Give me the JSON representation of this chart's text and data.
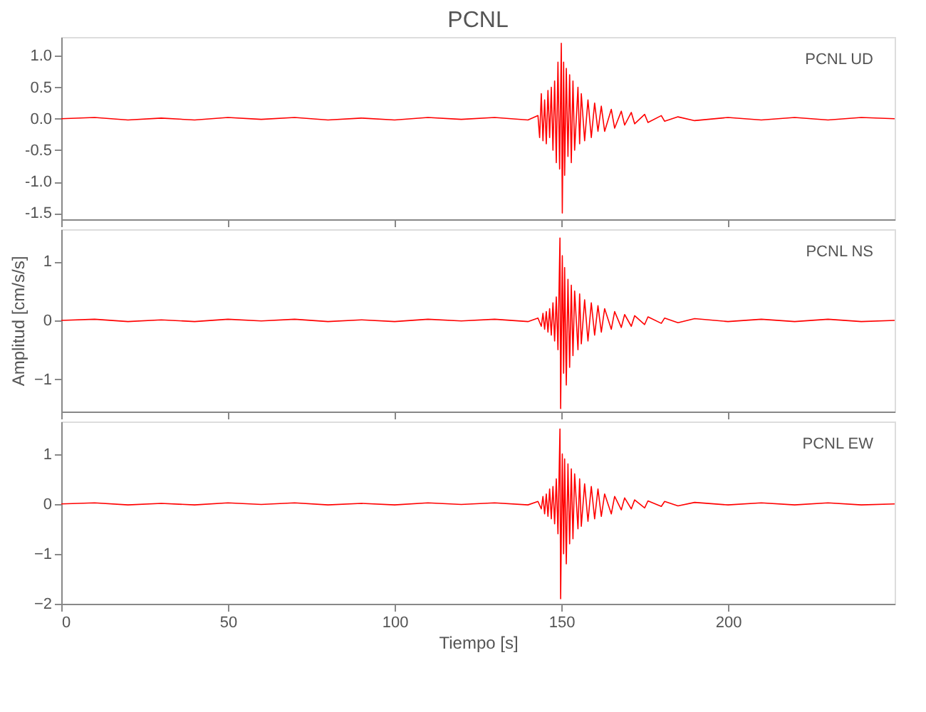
{
  "chart_data": [
    {
      "type": "line",
      "title": "PCNL",
      "annotations": [
        "PCNL  UD"
      ],
      "xlim": [
        0,
        250
      ],
      "xticks": [
        0,
        50,
        100,
        150,
        200
      ],
      "tick_labels": "y",
      "grid": false,
      "ylim": [
        -1.6,
        1.3
      ],
      "yticks": [
        {
          "value": 1,
          "label": "1.0"
        },
        {
          "value": 0.5,
          "label": "0.5"
        },
        {
          "value": 0,
          "label": "0.0"
        },
        {
          "value": -0.5,
          "label": "-0.5"
        },
        {
          "value": -1,
          "label": "-1.0"
        },
        {
          "value": -1.5,
          "label": "-1.5"
        }
      ],
      "x": [
        0,
        10,
        20,
        30,
        40,
        50,
        60,
        70,
        80,
        90,
        100,
        110,
        120,
        130,
        140,
        143,
        143.5,
        144,
        144.5,
        145,
        145.5,
        146,
        146.5,
        147,
        147.5,
        148,
        148.5,
        149,
        149.5,
        150,
        150.3,
        150.7,
        151,
        151.5,
        152,
        152.5,
        153,
        153.5,
        154,
        155,
        155.5,
        156,
        157,
        158,
        159,
        160,
        161,
        162,
        163,
        165,
        166,
        168,
        169,
        171,
        172,
        175,
        176,
        180,
        181,
        185,
        190,
        200,
        210,
        220,
        230,
        240,
        250
      ],
      "series": [
        {
          "color": "#ff0000",
          "values": [
            0,
            0.02,
            -0.02,
            0.01,
            -0.02,
            0.02,
            -0.01,
            0.02,
            -0.02,
            0.01,
            -0.02,
            0.02,
            -0.01,
            0.02,
            -0.02,
            0.05,
            -0.3,
            0.4,
            -0.35,
            0.3,
            -0.4,
            0.45,
            -0.3,
            0.5,
            -0.5,
            0.6,
            -0.7,
            0.9,
            -0.8,
            1.2,
            -1.5,
            0.9,
            -0.9,
            0.8,
            -0.6,
            0.7,
            -0.7,
            0.6,
            -0.5,
            0.5,
            -0.4,
            0.4,
            -0.35,
            0.3,
            -0.3,
            0.25,
            -0.2,
            0.2,
            -0.2,
            0.15,
            -0.15,
            0.12,
            -0.1,
            0.1,
            -0.08,
            0.07,
            -0.06,
            0.05,
            -0.04,
            0.03,
            -0.03,
            0.02,
            -0.02,
            0.02,
            -0.02,
            0.02,
            0
          ]
        }
      ]
    },
    {
      "type": "line",
      "ylabel": "Amplitud [cm/s/s]",
      "annotations": [
        "PCNL  NS"
      ],
      "xlim": [
        0,
        250
      ],
      "xticks": [
        0,
        50,
        100,
        150,
        200
      ],
      "tick_labels": "y",
      "grid": false,
      "ylim": [
        -1.55,
        1.55
      ],
      "yticks": [
        1,
        0,
        -1
      ],
      "x": [
        0,
        10,
        20,
        30,
        40,
        50,
        60,
        70,
        80,
        90,
        100,
        110,
        120,
        130,
        140,
        143,
        144,
        144.5,
        145,
        145.5,
        146,
        146.5,
        147,
        147.5,
        148,
        148.5,
        149,
        149.6,
        149.8,
        150.3,
        150.7,
        151,
        151.5,
        152,
        152.5,
        153,
        153.5,
        154,
        155,
        155.5,
        156,
        157,
        158,
        159,
        160,
        161,
        162,
        163,
        165,
        166,
        168,
        169,
        171,
        172,
        175,
        176,
        180,
        181,
        185,
        190,
        200,
        210,
        220,
        230,
        240,
        250
      ],
      "series": [
        {
          "color": "#ff0000",
          "values": [
            0,
            0.02,
            -0.02,
            0.01,
            -0.02,
            0.02,
            -0.01,
            0.02,
            -0.02,
            0.01,
            -0.02,
            0.02,
            -0.01,
            0.02,
            -0.02,
            0.04,
            -0.1,
            0.12,
            -0.15,
            0.15,
            -0.2,
            0.2,
            -0.25,
            0.3,
            -0.35,
            0.4,
            -0.5,
            1.4,
            -1.5,
            1.1,
            -0.9,
            0.9,
            -1.1,
            0.7,
            -0.8,
            0.6,
            -0.6,
            0.5,
            -0.5,
            0.45,
            -0.4,
            0.35,
            -0.35,
            0.3,
            -0.25,
            0.25,
            -0.2,
            0.2,
            -0.15,
            0.15,
            -0.12,
            0.1,
            -0.1,
            0.08,
            -0.07,
            0.06,
            -0.05,
            0.04,
            -0.04,
            0.03,
            -0.02,
            0.02,
            -0.02,
            0.02,
            -0.02,
            0
          ]
        }
      ]
    },
    {
      "type": "line",
      "xlabel": "Tiempo [s]",
      "annotations": [
        "PCNL  EW"
      ],
      "xlim": [
        0,
        250
      ],
      "xticks": [
        0,
        50,
        100,
        150,
        200
      ],
      "grid": false,
      "ylim": [
        -2,
        1.65
      ],
      "yticks": [
        1,
        0,
        -1,
        -2
      ],
      "x": [
        0,
        10,
        20,
        30,
        40,
        50,
        60,
        70,
        80,
        90,
        100,
        110,
        120,
        130,
        140,
        143,
        144,
        144.5,
        145,
        145.5,
        146,
        146.5,
        147,
        147.5,
        148,
        148.5,
        149,
        149.6,
        149.8,
        150.3,
        150.7,
        151,
        151.5,
        152,
        152.5,
        153,
        153.5,
        154,
        155,
        155.5,
        156,
        157,
        158,
        159,
        160,
        161,
        162,
        163,
        165,
        166,
        168,
        169,
        171,
        172,
        175,
        176,
        180,
        181,
        185,
        190,
        200,
        210,
        220,
        230,
        240,
        250
      ],
      "series": [
        {
          "color": "#ff0000",
          "values": [
            0,
            0.02,
            -0.02,
            0.01,
            -0.02,
            0.02,
            -0.01,
            0.02,
            -0.02,
            0.01,
            -0.02,
            0.02,
            -0.01,
            0.02,
            -0.02,
            0.05,
            -0.1,
            0.15,
            -0.2,
            0.2,
            -0.25,
            0.3,
            -0.3,
            0.35,
            -0.4,
            0.5,
            -0.6,
            1.5,
            -1.9,
            1.0,
            -1.0,
            0.9,
            -1.2,
            0.8,
            -0.8,
            0.7,
            -0.7,
            0.6,
            -0.5,
            0.5,
            -0.45,
            0.4,
            -0.35,
            0.35,
            -0.3,
            0.3,
            -0.25,
            0.2,
            -0.2,
            0.15,
            -0.12,
            0.12,
            -0.1,
            0.08,
            -0.08,
            0.06,
            -0.05,
            0.05,
            -0.04,
            0.03,
            -0.02,
            0.02,
            -0.02,
            0.02,
            -0.02,
            0
          ]
        }
      ]
    }
  ]
}
